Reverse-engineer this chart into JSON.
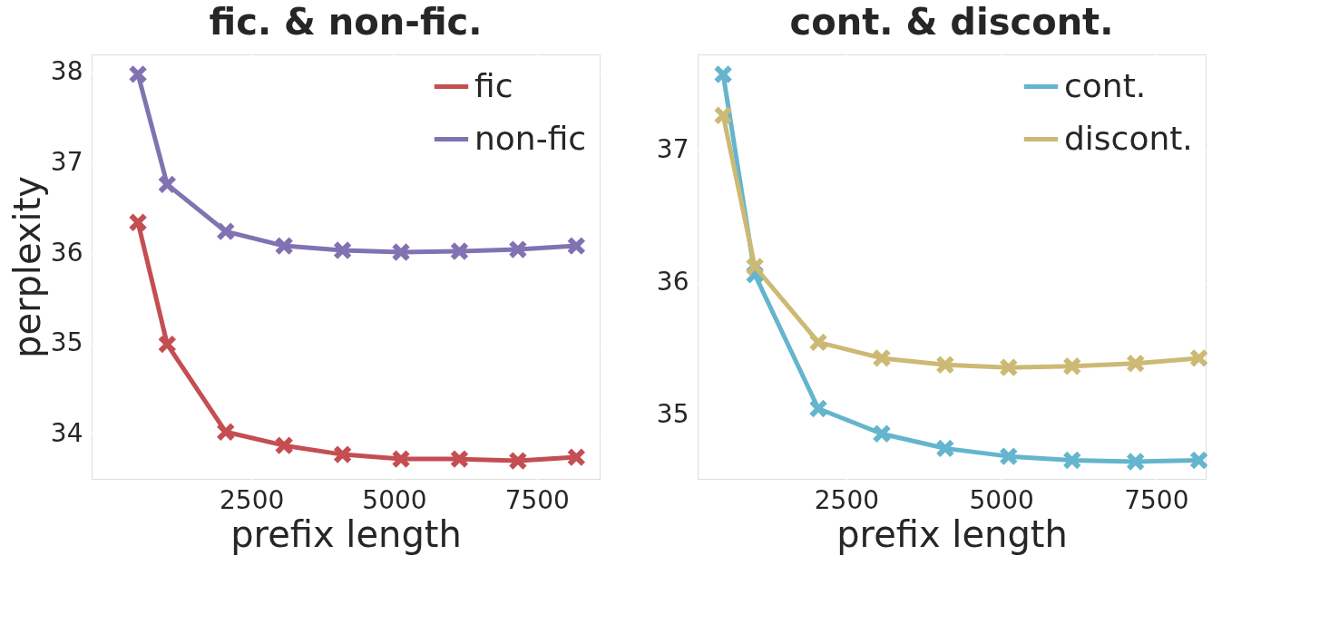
{
  "chart_data": [
    {
      "type": "line",
      "title": "fic. & non-fic.",
      "xlabel": "prefix length",
      "ylabel": "perplexity",
      "x": [
        512,
        1024,
        2048,
        3072,
        4096,
        5120,
        6144,
        7168,
        8192
      ],
      "xlim": [
        -300,
        8600
      ],
      "xticks": [
        2500,
        5000,
        7500
      ],
      "ylim": [
        33.5,
        38.2
      ],
      "yticks": [
        34,
        35,
        36,
        37,
        38
      ],
      "grid": true,
      "legend": "top right",
      "marker": "cross",
      "line_style": "solid",
      "series": [
        {
          "name": "fic",
          "color": "#c44e52",
          "values": [
            36.34,
            34.99,
            34.02,
            33.87,
            33.77,
            33.72,
            33.72,
            33.7,
            33.74
          ]
        },
        {
          "name": "non-fic",
          "color": "#8172b2",
          "values": [
            37.98,
            36.76,
            36.24,
            36.08,
            36.03,
            36.01,
            36.02,
            36.04,
            36.08
          ]
        }
      ]
    },
    {
      "type": "line",
      "title": "cont. & discont.",
      "xlabel": "prefix length",
      "x": [
        512,
        1024,
        2048,
        3072,
        4096,
        5120,
        6144,
        7168,
        8192
      ],
      "xlim": [
        100,
        8300
      ],
      "xticks": [
        2500,
        5000,
        7500
      ],
      "ylim": [
        34.52,
        37.72
      ],
      "yticks": [
        35,
        36,
        37
      ],
      "grid": true,
      "legend": "top right",
      "marker": "cross",
      "line_style": "solid",
      "series": [
        {
          "name": "cont.",
          "color": "#64b5cd",
          "values": [
            37.57,
            36.06,
            35.05,
            34.86,
            34.75,
            34.69,
            34.66,
            34.65,
            34.66
          ]
        },
        {
          "name": "discont.",
          "color": "#ccb974",
          "values": [
            37.26,
            36.12,
            35.55,
            35.43,
            35.38,
            35.36,
            35.37,
            35.39,
            35.43
          ]
        }
      ]
    }
  ]
}
